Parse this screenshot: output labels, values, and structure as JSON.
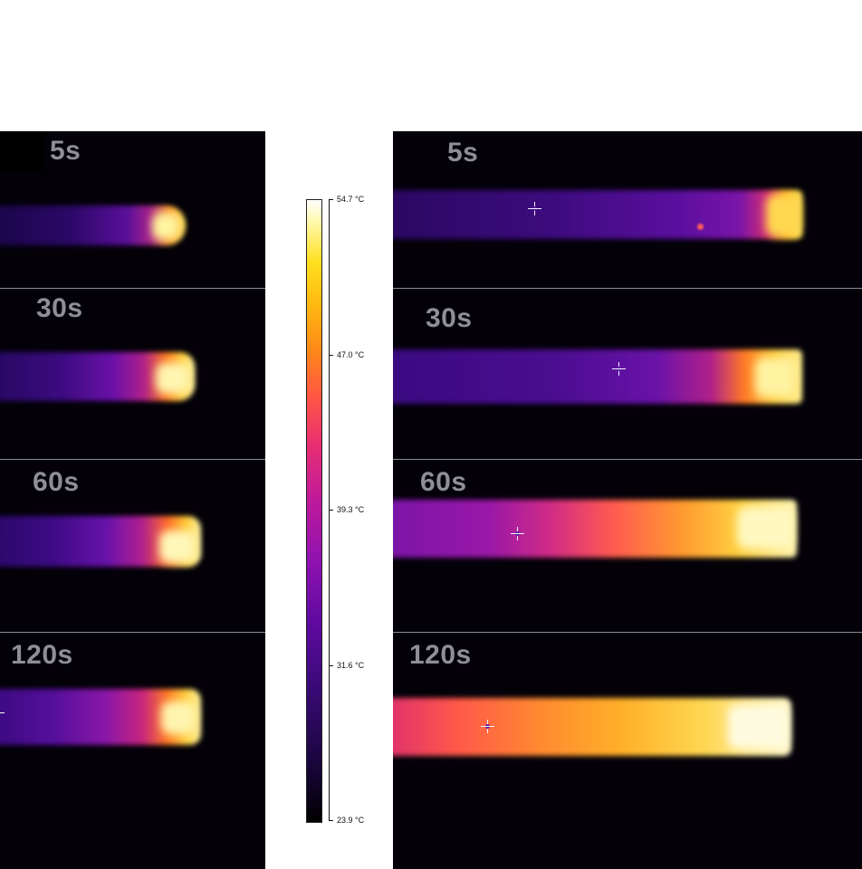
{
  "scale": {
    "max_label": "54.7 °C",
    "t2_label": "47.0 °C",
    "t3_label": "39.3 °C",
    "t4_label": "31.6 °C",
    "min_label": "23.9 °C"
  },
  "left_frames": [
    {
      "time": "5s"
    },
    {
      "time": "30s"
    },
    {
      "time": "60s"
    },
    {
      "time": "120s"
    }
  ],
  "right_frames": [
    {
      "time": "5s"
    },
    {
      "time": "30s"
    },
    {
      "time": "60s"
    },
    {
      "time": "120s"
    }
  ],
  "colors": {
    "background": "#ffffff",
    "panel": "#020006",
    "label": "#8e8e96",
    "separator": "#8a8a92"
  }
}
